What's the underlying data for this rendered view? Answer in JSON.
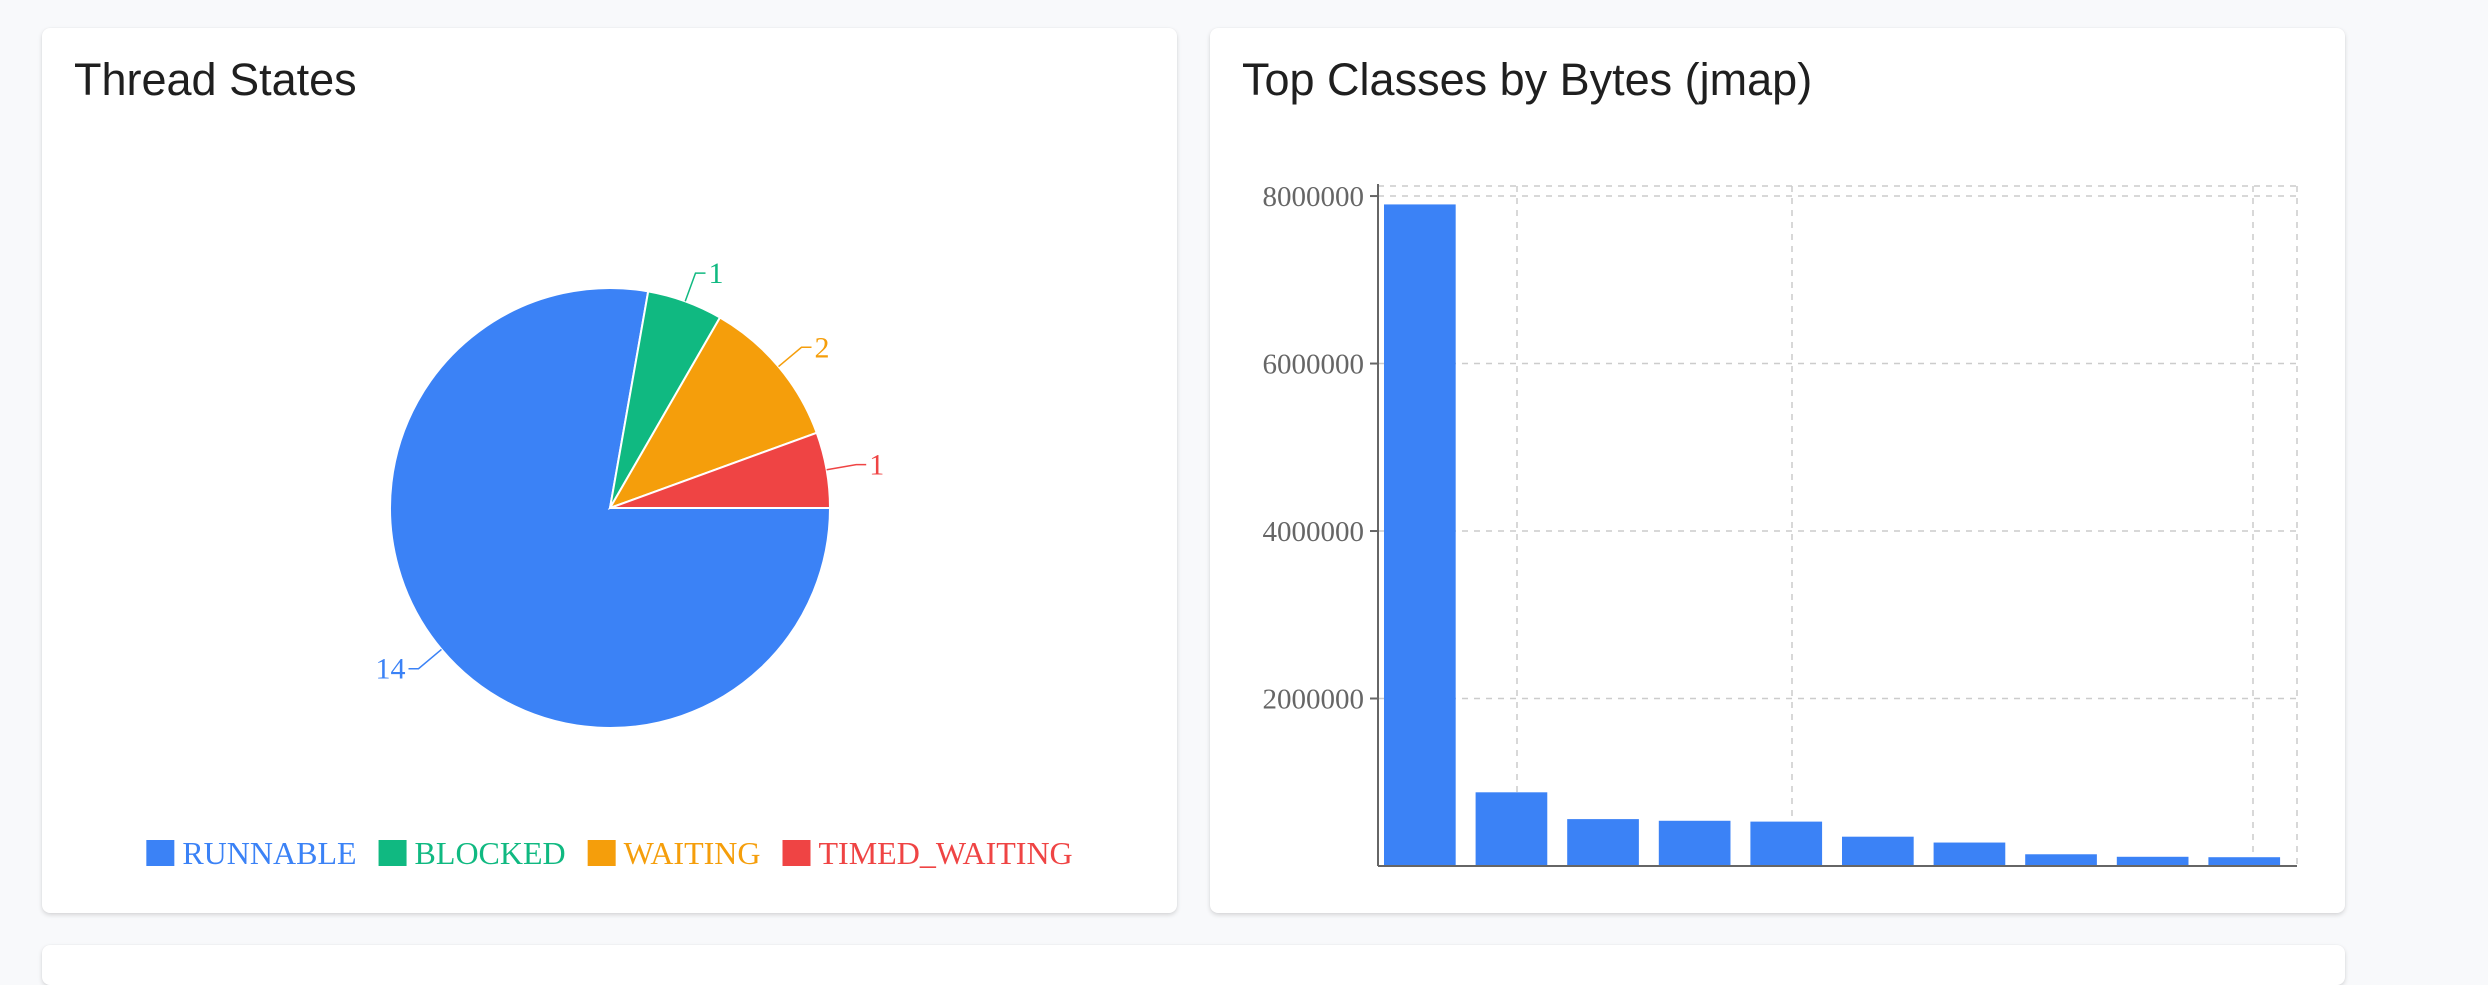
{
  "panels": {
    "threads": {
      "title": "Thread States"
    },
    "classes": {
      "title": "Top Classes by Bytes (jmap)"
    }
  },
  "chart_data": [
    {
      "type": "pie",
      "title": "Thread States",
      "slices": [
        {
          "label": "RUNNABLE",
          "value": 14,
          "color": "#3b82f6"
        },
        {
          "label": "BLOCKED",
          "value": 1,
          "color": "#10b981"
        },
        {
          "label": "WAITING",
          "value": 2,
          "color": "#f59e0b"
        },
        {
          "label": "TIMED_WAITING",
          "value": 1,
          "color": "#ef4444"
        }
      ],
      "legend": "bottom",
      "data_labels": true
    },
    {
      "type": "bar",
      "title": "Top Classes by Bytes (jmap)",
      "ylim": [
        0,
        8000000
      ],
      "yticks": [
        2000000,
        4000000,
        6000000,
        8000000
      ],
      "ytick_labels": [
        "2000000",
        "4000000",
        "6000000",
        "8000000"
      ],
      "values": [
        7900000,
        880000,
        560000,
        540000,
        530000,
        350000,
        280000,
        140000,
        110000,
        105000
      ],
      "bar_color": "#3b82f6",
      "grid": true,
      "xtick_labels_shown": false
    }
  ]
}
